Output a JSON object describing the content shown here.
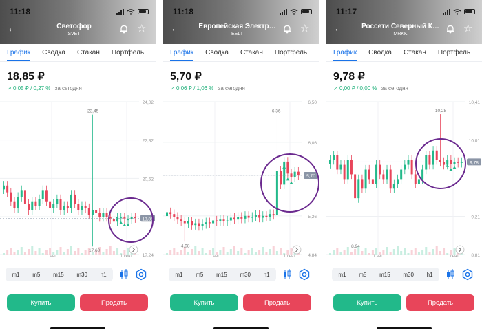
{
  "phones": [
    {
      "time": "11:18",
      "name": "Светофор",
      "ticker": "SVET",
      "tabs": [
        "График",
        "Сводка",
        "Стакан",
        "Портфель"
      ],
      "price": "18,85 ₽",
      "change_abs": "0,05 ₽",
      "change_pct": "0,27 %",
      "today": "за сегодня",
      "chart_data": {
        "type": "candlestick",
        "y_ticks": [
          "24,02",
          "22,32",
          "20,62",
          "18,92",
          "17,24"
        ],
        "ylim": [
          17.24,
          24.02
        ],
        "x_labels": [
          "1 авг.",
          "1 сент."
        ],
        "max_label": "23,45",
        "min_label": "17,60",
        "current_label": "18,85",
        "close": [
          20.3,
          20.0,
          19.6,
          19.3,
          19.8,
          20.1,
          19.5,
          19.2,
          19.6,
          19.4,
          19.7,
          20.1,
          19.6,
          19.3,
          19.5,
          19.7,
          19.2,
          19.4,
          19.3,
          19.9,
          19.5,
          19.2,
          19.4,
          19.3,
          19.0,
          19.2,
          19.1,
          18.9,
          19.1,
          18.9,
          18.8,
          18.7,
          18.9,
          18.9,
          18.8,
          18.8,
          18.9,
          18.85
        ]
      },
      "chips": [
        "m1",
        "m5",
        "m15",
        "m30",
        "h1"
      ],
      "buy": "Купить",
      "sell": "Продать"
    },
    {
      "time": "11:18",
      "name": "Европейская Электр…",
      "ticker": "EELT",
      "tabs": [
        "График",
        "Сводка",
        "Стакан",
        "Портфель"
      ],
      "price": "5,70 ₽",
      "change_abs": "0,06 ₽",
      "change_pct": "1,06 %",
      "today": "за сегодня",
      "chart_data": {
        "type": "candlestick",
        "y_ticks": [
          "6,50",
          "6,06",
          "5,70",
          "5,26",
          "4,84"
        ],
        "ylim": [
          4.84,
          6.5
        ],
        "x_labels": [
          "1 авг.",
          "1 сент."
        ],
        "max_label": "6,36",
        "min_label": "4,98",
        "current_label": "5,70",
        "close": [
          5.3,
          5.28,
          5.25,
          5.22,
          5.2,
          5.18,
          5.2,
          5.16,
          5.18,
          5.15,
          5.17,
          5.19,
          5.18,
          5.21,
          5.2,
          5.22,
          5.2,
          5.21,
          5.24,
          5.22,
          5.25,
          5.23,
          5.26,
          5.24,
          5.25,
          5.27,
          5.24,
          5.26,
          5.25,
          5.28,
          5.27,
          5.75,
          5.6,
          5.85,
          5.72,
          5.68,
          5.74,
          5.7
        ]
      },
      "chips": [
        "m1",
        "m5",
        "m15",
        "m30",
        "h1"
      ],
      "buy": "Купить",
      "sell": "Продать"
    },
    {
      "time": "11:17",
      "name": "Россети Северный К…",
      "ticker": "MRKK",
      "tabs": [
        "График",
        "Сводка",
        "Стакан",
        "Портфель"
      ],
      "price": "9,78 ₽",
      "change_abs": "0,00 ₽",
      "change_pct": "0,00 %",
      "today": "за сегодня",
      "chart_data": {
        "type": "candlestick",
        "y_ticks": [
          "10,41",
          "10,01",
          "9,78",
          "9,21",
          "8,81"
        ],
        "ylim": [
          8.81,
          10.41
        ],
        "x_labels": [
          "1 авг.",
          "1 сент."
        ],
        "max_label": "10,28",
        "min_label": "8,94",
        "current_label": "9,78",
        "close": [
          9.8,
          9.85,
          9.7,
          9.75,
          9.6,
          9.8,
          9.65,
          9.4,
          9.6,
          9.5,
          9.7,
          9.6,
          9.55,
          9.75,
          9.65,
          9.6,
          9.7,
          9.5,
          9.55,
          9.6,
          9.7,
          9.75,
          9.8,
          9.65,
          9.55,
          9.6,
          9.7,
          9.85,
          9.75,
          9.9,
          9.8,
          9.78,
          9.75,
          9.8,
          9.76,
          9.78,
          9.77,
          9.78
        ]
      },
      "chips": [
        "m1",
        "m5",
        "m15",
        "m30",
        "h1"
      ],
      "buy": "Купить",
      "sell": "Продать"
    }
  ],
  "colors": {
    "up": "#22b98a",
    "down": "#e8455a",
    "accent": "#1a73e8",
    "annotation": "#6b2a8f"
  },
  "icons": [
    "back-arrow-icon",
    "bell-icon",
    "star-icon",
    "candlestick-type-icon",
    "settings-hexagon-icon",
    "chevron-right-icon",
    "signal-icon",
    "wifi-icon",
    "battery-icon"
  ]
}
